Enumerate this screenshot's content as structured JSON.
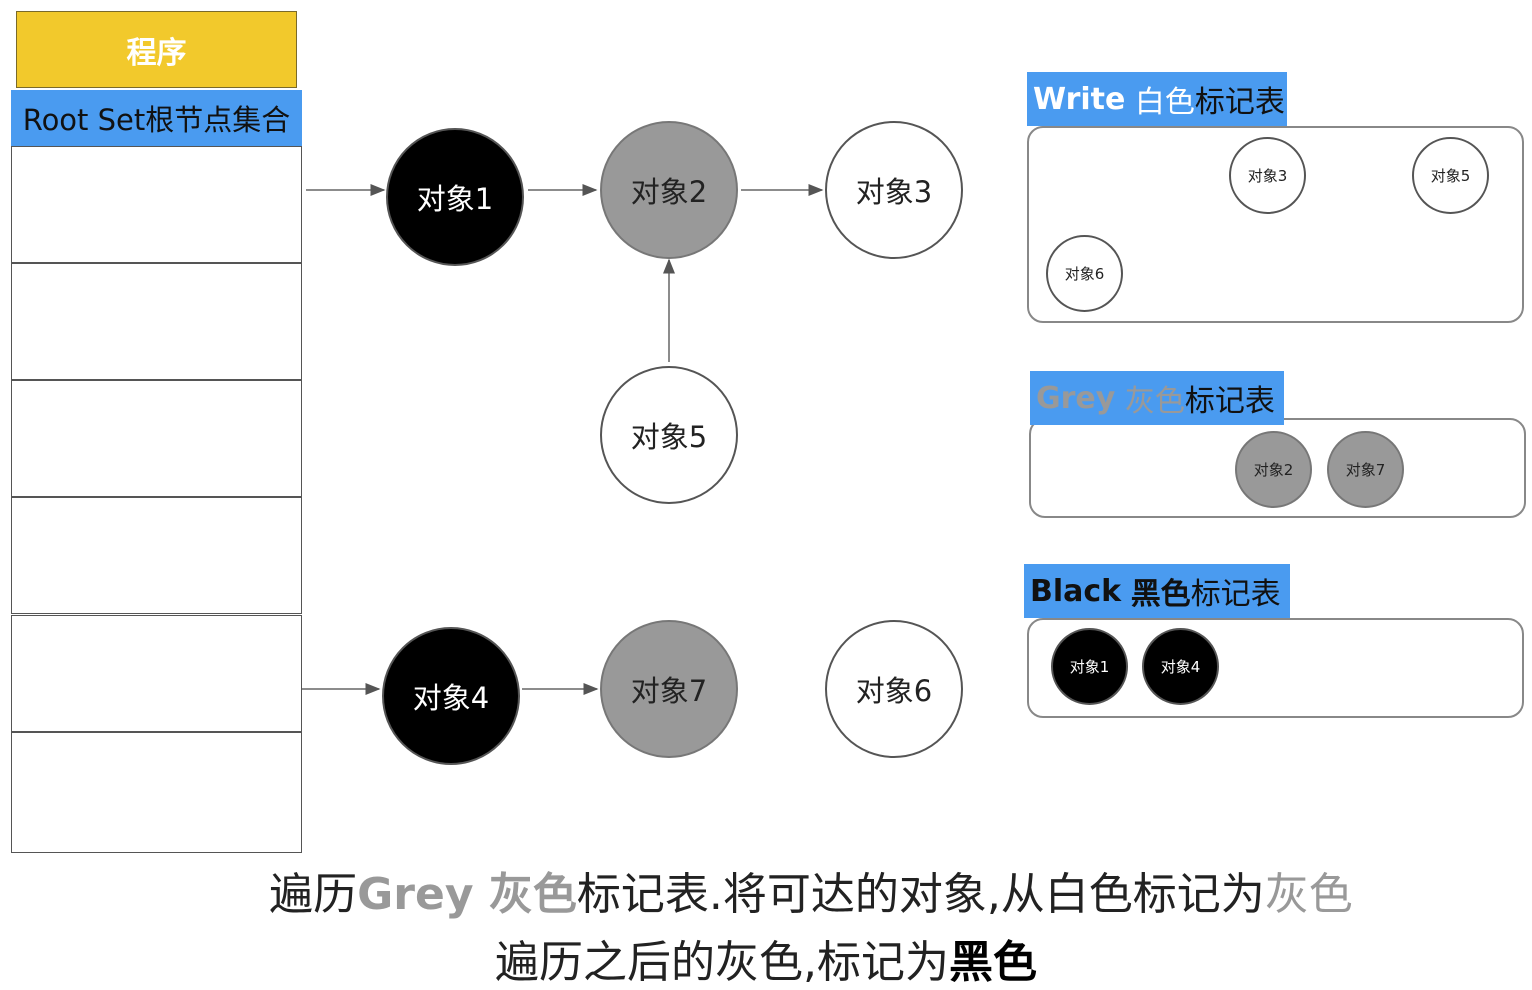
{
  "program": {
    "label": "程序"
  },
  "root_set": {
    "title": "Root Set根节点集合"
  },
  "nodes": {
    "obj1": "对象1",
    "obj2": "对象2",
    "obj3": "对象3",
    "obj4": "对象4",
    "obj5": "对象5",
    "obj6": "对象6",
    "obj7": "对象7"
  },
  "colors": {
    "white": "#ffffff",
    "grey": "#999999",
    "black": "#000000",
    "header_blue": "#4a9bf0",
    "program_yellow": "#f2c92c"
  },
  "white_table": {
    "title_en": "Write",
    "title_color": "白色",
    "title_rest": "标记表",
    "items": [
      "对象3",
      "对象5",
      "对象6"
    ]
  },
  "grey_table": {
    "title_en": "Grey",
    "title_color": "灰色",
    "title_rest": "标记表",
    "items": [
      "对象2",
      "对象7"
    ]
  },
  "black_table": {
    "title_en": "Black",
    "title_color": "黑色",
    "title_rest": "标记表",
    "items": [
      "对象1",
      "对象4"
    ]
  },
  "caption": {
    "line1": [
      "遍历",
      "Grey 灰色",
      "标记表.将可达的对象,从白色标记为",
      "灰色"
    ],
    "line2": [
      "遍历之后的灰色,标记为",
      "黑色"
    ]
  }
}
